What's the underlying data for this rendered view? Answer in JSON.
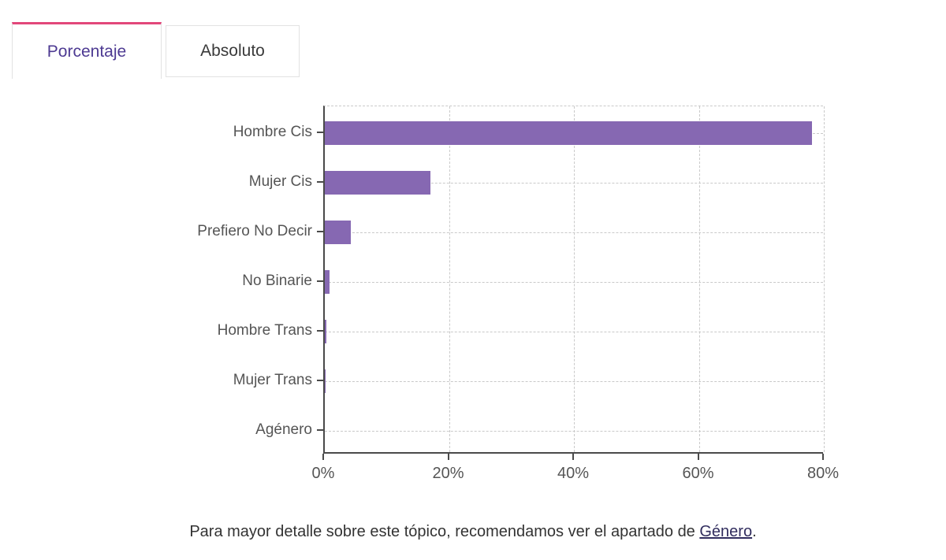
{
  "tabs": [
    {
      "label": "Porcentaje",
      "active": true
    },
    {
      "label": "Absoluto",
      "active": false
    }
  ],
  "chart_data": {
    "type": "bar",
    "orientation": "horizontal",
    "categories": [
      "Hombre Cis",
      "Mujer Cis",
      "Prefiero No Decir",
      "No Binarie",
      "Hombre Trans",
      "Mujer Trans",
      "Agénero"
    ],
    "values": [
      78,
      16.9,
      4.2,
      0.7,
      0.3,
      0.15,
      0
    ],
    "unit": "%",
    "title": "",
    "xlabel": "",
    "ylabel": "",
    "xlim": [
      0,
      80
    ],
    "x_ticks": [
      "0%",
      "20%",
      "40%",
      "60%",
      "80%"
    ],
    "x_tick_values": [
      0,
      20,
      40,
      60,
      80
    ],
    "grid": "dashed",
    "legend": "none",
    "bar_color": "#8668b2"
  },
  "footer": {
    "text_before": "Para mayor detalle sobre este tópico, recomendamos ver el apartado de ",
    "link_label": "Género",
    "text_after": "."
  },
  "colors": {
    "accent_pink": "#e2477a",
    "accent_purple_text": "#4d3a92",
    "bar_color": "#8668b2",
    "link_color": "#312d5e",
    "axis_color": "#4a4a4a",
    "grid_color": "#c9c9c9",
    "label_color": "#555555"
  }
}
